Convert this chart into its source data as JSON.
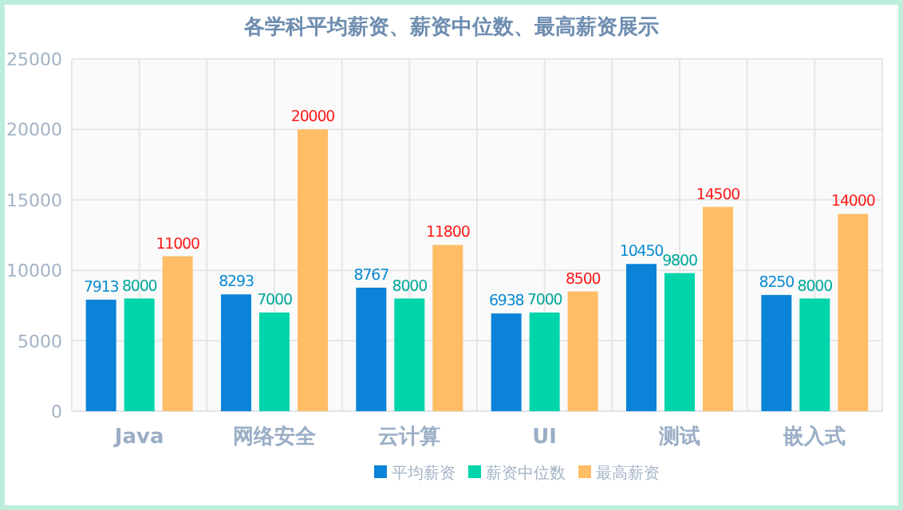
{
  "chart_data": {
    "type": "bar",
    "title": "各学科平均薪资、薪资中位数、最高薪资展示",
    "categories": [
      "Java",
      "网络安全",
      "云计算",
      "UI",
      "测试",
      "嵌入式"
    ],
    "series": [
      {
        "name": "平均薪资",
        "color": "#0a83d8",
        "values": [
          7913,
          8293,
          8767,
          6938,
          10450,
          8250
        ]
      },
      {
        "name": "薪资中位数",
        "color": "#00d4aa",
        "values": [
          8000,
          7000,
          8000,
          7000,
          9800,
          8000
        ]
      },
      {
        "name": "最高薪资",
        "color": "#ffbd66",
        "values": [
          11000,
          20000,
          11800,
          8500,
          14500,
          14000
        ]
      }
    ],
    "ylim": [
      0,
      25000
    ],
    "yticks": [
      0,
      5000,
      10000,
      15000,
      20000,
      25000
    ],
    "grid": true,
    "legend": "bottom",
    "data_labels": true
  }
}
